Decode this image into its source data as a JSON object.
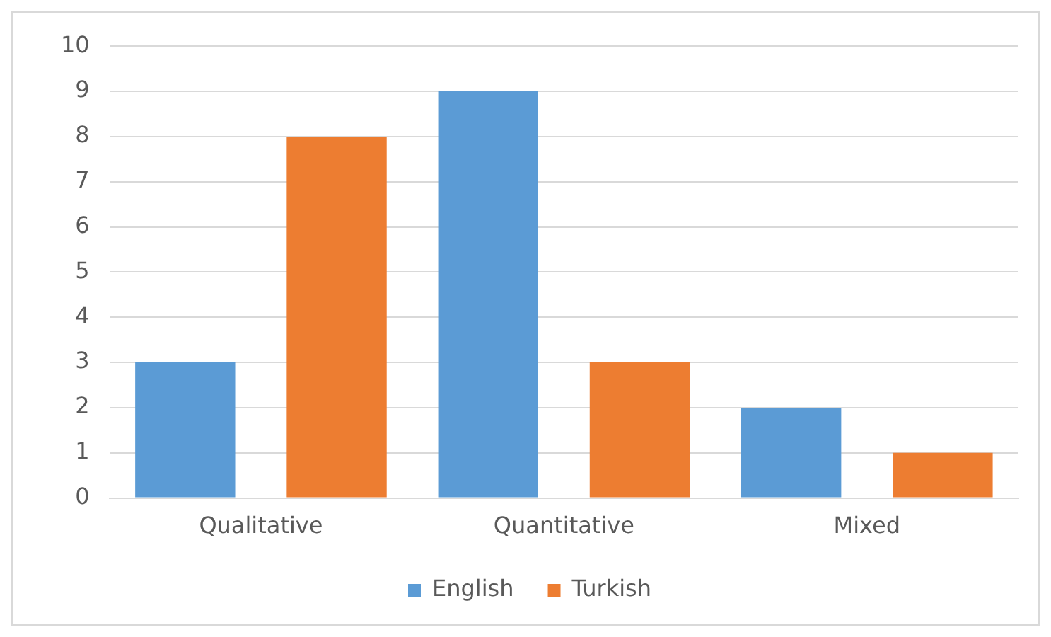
{
  "chart_data": {
    "type": "bar",
    "categories": [
      "Qualitative",
      "Quantitative",
      "Mixed"
    ],
    "series": [
      {
        "name": "English",
        "color": "#5b9bd5",
        "values": [
          3,
          9,
          2
        ]
      },
      {
        "name": "Turkish",
        "color": "#ed7d31",
        "values": [
          8,
          3,
          1
        ]
      }
    ],
    "ylim": [
      0,
      10
    ],
    "yticks": [
      0,
      1,
      2,
      3,
      4,
      5,
      6,
      7,
      8,
      9,
      10
    ],
    "grid": "y",
    "legend": "bottom"
  }
}
